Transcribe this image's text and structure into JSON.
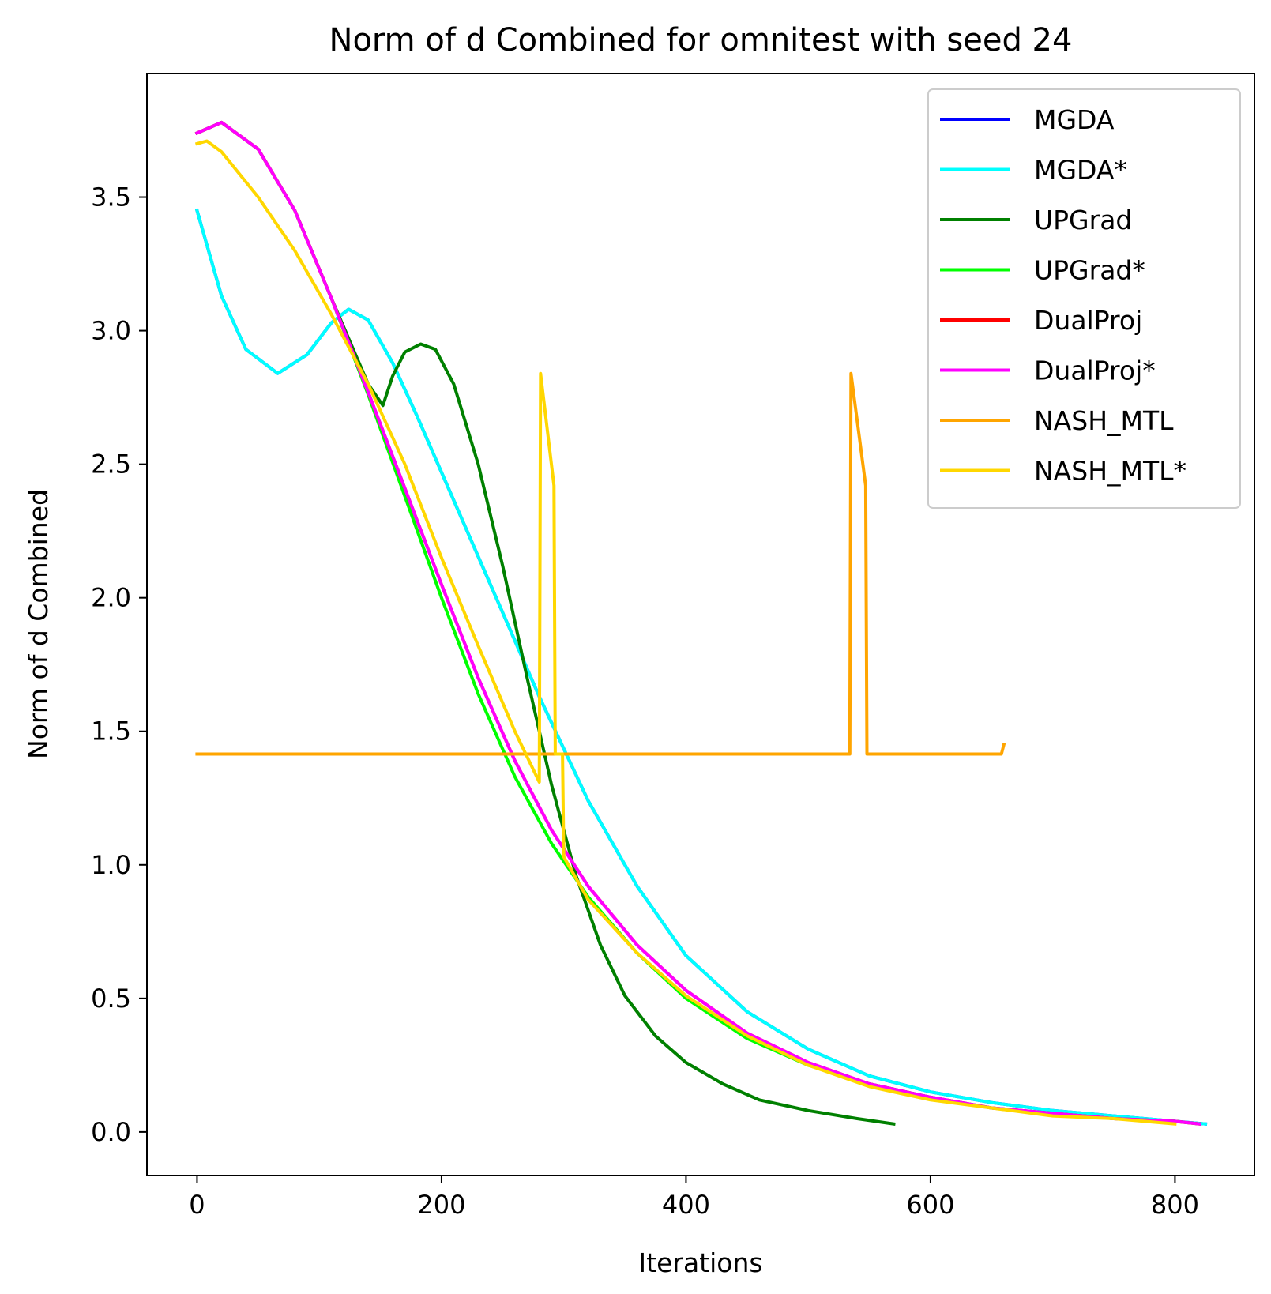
{
  "chart_data": {
    "type": "line",
    "title": "Norm of d Combined for omnitest with seed 24",
    "xlabel": "Iterations",
    "ylabel": "Norm of d Combined",
    "xlim": [
      -41,
      865
    ],
    "ylim": [
      -0.163,
      3.963
    ],
    "xticks": [
      0,
      200,
      400,
      600,
      800
    ],
    "yticks": [
      0.0,
      0.5,
      1.0,
      1.5,
      2.0,
      2.5,
      3.0,
      3.5
    ],
    "xtick_labels": [
      "0",
      "200",
      "400",
      "600",
      "800"
    ],
    "ytick_labels": [
      "0.0",
      "0.5",
      "1.0",
      "1.5",
      "2.0",
      "2.5",
      "3.0",
      "3.5"
    ],
    "grid": false,
    "legend_position": "top-right",
    "series": [
      {
        "name": "MGDA",
        "color": "#0000ff",
        "x": [
          0,
          20,
          40,
          66,
          90,
          110,
          124,
          140,
          160,
          180,
          200,
          240,
          280,
          320,
          360,
          400,
          450,
          500,
          550,
          600,
          650,
          700,
          750,
          800,
          825
        ],
        "y": [
          3.45,
          3.13,
          2.93,
          2.84,
          2.91,
          3.03,
          3.08,
          3.04,
          2.88,
          2.68,
          2.47,
          2.05,
          1.63,
          1.24,
          0.92,
          0.66,
          0.45,
          0.31,
          0.21,
          0.15,
          0.11,
          0.08,
          0.06,
          0.04,
          0.03
        ]
      },
      {
        "name": "MGDA*",
        "color": "#00ffff",
        "x": [
          0,
          20,
          40,
          66,
          90,
          110,
          124,
          140,
          160,
          180,
          200,
          240,
          280,
          320,
          360,
          400,
          450,
          500,
          550,
          600,
          650,
          700,
          750,
          800,
          825
        ],
        "y": [
          3.45,
          3.13,
          2.93,
          2.84,
          2.91,
          3.03,
          3.08,
          3.04,
          2.88,
          2.68,
          2.47,
          2.05,
          1.63,
          1.24,
          0.92,
          0.66,
          0.45,
          0.31,
          0.21,
          0.15,
          0.11,
          0.08,
          0.06,
          0.04,
          0.03
        ]
      },
      {
        "name": "UPGrad",
        "color": "#008000",
        "x": [
          0,
          20,
          50,
          80,
          110,
          140,
          152,
          160,
          170,
          183,
          195,
          210,
          230,
          250,
          270,
          290,
          310,
          330,
          350,
          375,
          400,
          430,
          460,
          500,
          540,
          570
        ],
        "y": [
          3.74,
          3.78,
          3.68,
          3.45,
          3.12,
          2.8,
          2.72,
          2.83,
          2.92,
          2.95,
          2.93,
          2.8,
          2.5,
          2.12,
          1.7,
          1.3,
          0.96,
          0.7,
          0.51,
          0.36,
          0.26,
          0.18,
          0.12,
          0.08,
          0.05,
          0.03
        ]
      },
      {
        "name": "UPGrad*",
        "color": "#00ff00",
        "x": [
          0,
          20,
          50,
          80,
          110,
          140,
          170,
          200,
          230,
          260,
          290,
          320,
          360,
          400,
          450,
          500,
          550,
          600,
          650,
          700,
          750,
          800,
          820
        ],
        "y": [
          3.74,
          3.78,
          3.68,
          3.45,
          3.12,
          2.76,
          2.38,
          2.0,
          1.64,
          1.33,
          1.08,
          0.88,
          0.67,
          0.5,
          0.35,
          0.25,
          0.18,
          0.13,
          0.09,
          0.07,
          0.05,
          0.04,
          0.03
        ]
      },
      {
        "name": "DualProj",
        "color": "#ff0000",
        "x": [
          0,
          20,
          50,
          80,
          110,
          140,
          170,
          200,
          230,
          260,
          290,
          320,
          360,
          400,
          450,
          500,
          550,
          600,
          650,
          700,
          750,
          800,
          820
        ],
        "y": [
          3.74,
          3.78,
          3.68,
          3.45,
          3.12,
          2.77,
          2.41,
          2.05,
          1.7,
          1.39,
          1.13,
          0.92,
          0.7,
          0.53,
          0.37,
          0.26,
          0.18,
          0.13,
          0.09,
          0.07,
          0.05,
          0.04,
          0.03
        ]
      },
      {
        "name": "DualProj*",
        "color": "#ff00ff",
        "x": [
          0,
          20,
          50,
          80,
          110,
          140,
          170,
          200,
          230,
          260,
          290,
          320,
          360,
          400,
          450,
          500,
          550,
          600,
          650,
          700,
          750,
          800,
          820
        ],
        "y": [
          3.74,
          3.78,
          3.68,
          3.45,
          3.12,
          2.77,
          2.41,
          2.05,
          1.7,
          1.39,
          1.13,
          0.92,
          0.7,
          0.53,
          0.37,
          0.26,
          0.18,
          0.13,
          0.09,
          0.07,
          0.05,
          0.04,
          0.03
        ]
      },
      {
        "name": "NASH_MTL",
        "color": "#ffa500",
        "x": [
          0,
          100,
          200,
          300,
          400,
          500,
          534,
          535,
          547,
          548,
          600,
          658,
          660
        ],
        "y": [
          1.415,
          1.415,
          1.415,
          1.415,
          1.415,
          1.415,
          1.415,
          2.84,
          2.42,
          1.415,
          1.415,
          1.415,
          1.45
        ]
      },
      {
        "name": "NASH_MTL*",
        "color": "#ffd700",
        "x": [
          0,
          8,
          20,
          50,
          80,
          110,
          140,
          170,
          200,
          230,
          260,
          280,
          281,
          292,
          293,
          299,
          300,
          320,
          360,
          400,
          450,
          500,
          550,
          600,
          650,
          700,
          750,
          800
        ],
        "y": [
          3.7,
          3.71,
          3.67,
          3.5,
          3.3,
          3.06,
          2.8,
          2.5,
          2.15,
          1.82,
          1.5,
          1.31,
          2.84,
          2.42,
          1.415,
          1.415,
          1.03,
          0.87,
          0.67,
          0.51,
          0.36,
          0.25,
          0.17,
          0.12,
          0.09,
          0.06,
          0.05,
          0.03
        ]
      }
    ]
  }
}
